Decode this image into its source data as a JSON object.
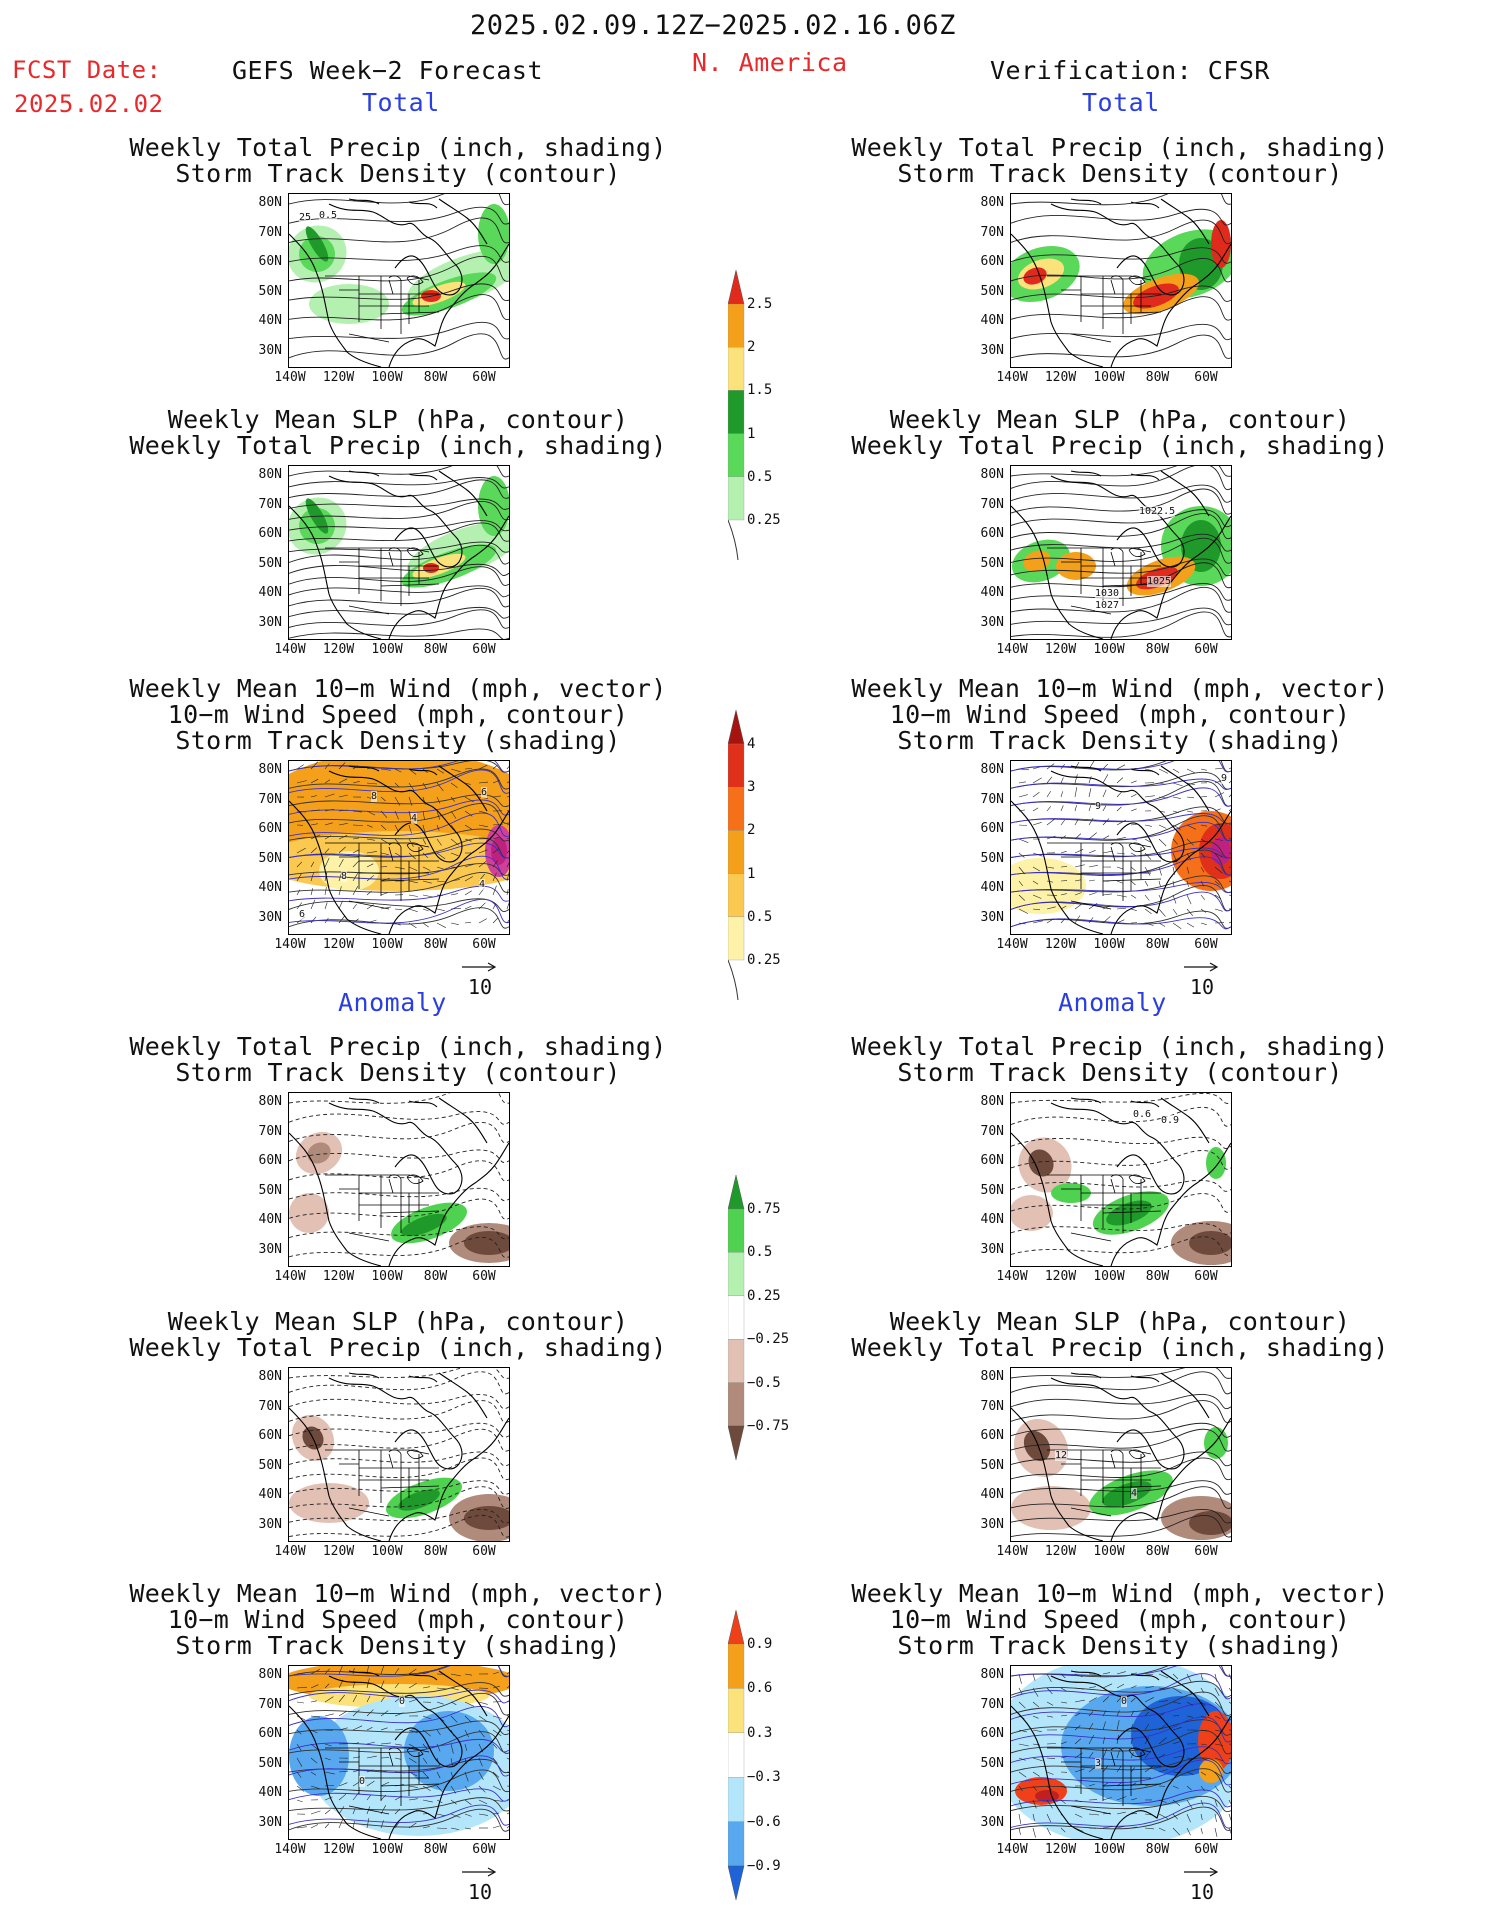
{
  "header": {
    "period": "2025.02.09.12Z−2025.02.16.06Z",
    "fcst_label": "FCST Date:",
    "fcst_date": "2025.02.02",
    "model": "GEFS Week−2 Forecast",
    "region": "N. America",
    "verification": "Verification: CFSR"
  },
  "sections": {
    "total": "Total",
    "anomaly": "Anomaly"
  },
  "titles": {
    "precip_storm": [
      "Weekly Total Precip (inch, shading)",
      "Storm Track Density (contour)"
    ],
    "slp_precip": [
      "Weekly Mean SLP (hPa, contour)",
      "Weekly Total Precip (inch, shading)"
    ],
    "wind_storm": [
      "Weekly Mean 10−m Wind (mph, vector)",
      "10−m Wind Speed (mph, contour)",
      "Storm Track Density (shading)"
    ]
  },
  "axes": {
    "lat": [
      "80N",
      "70N",
      "60N",
      "50N",
      "40N",
      "30N"
    ],
    "lon": [
      "140W",
      "120W",
      "100W",
      "80W",
      "60W"
    ]
  },
  "vector_reference": "10",
  "colorbars": {
    "precip_total": {
      "labels": [
        "2.5",
        "2",
        "1.5",
        "1",
        "0.5",
        "0.25"
      ],
      "colors": [
        "#e02a1c",
        "#f5a01a",
        "#fbe27a",
        "#1f9a2a",
        "#5ad85a",
        "#b4f0b0"
      ]
    },
    "storm_total": {
      "labels": [
        "4",
        "3",
        "2",
        "1",
        "0.5",
        "0.25"
      ],
      "colors": [
        "#a5140e",
        "#e0301a",
        "#f57018",
        "#f5a01a",
        "#fbc850",
        "#fdf2a8"
      ]
    },
    "precip_anom": {
      "labels": [
        "0.75",
        "0.5",
        "0.25",
        "−0.25",
        "−0.5",
        "−0.75"
      ],
      "colors": [
        "#1f9a2a",
        "#4fd24f",
        "#b4f0b0",
        "#ffffff",
        "#e2c0b4",
        "#b08a7a",
        "#6e4a3c"
      ]
    },
    "storm_anom": {
      "labels": [
        "0.9",
        "0.6",
        "0.3",
        "−0.3",
        "−0.6",
        "−0.9"
      ],
      "colors": [
        "#f0401a",
        "#f5a01a",
        "#fbe27a",
        "#ffffff",
        "#b4e6fb",
        "#58a8f0",
        "#1e64d8"
      ]
    }
  },
  "map_labels": {
    "fc_storm_total": [
      "25",
      "0.5"
    ],
    "fc_wind_total": [
      "8",
      "4",
      "6",
      "8",
      "4",
      "6"
    ],
    "ob_slp_total": [
      "1022.5",
      "1025",
      "1030",
      "1027"
    ],
    "ob_wind_total": [
      "9",
      "9"
    ],
    "ob_storm_anom": [
      "0.6",
      "0.9"
    ],
    "ob_slp_anom": [
      "12",
      "4"
    ],
    "fc_wind_anom": [
      "0",
      "0"
    ],
    "ob_wind_anom": [
      "0",
      "3"
    ]
  }
}
